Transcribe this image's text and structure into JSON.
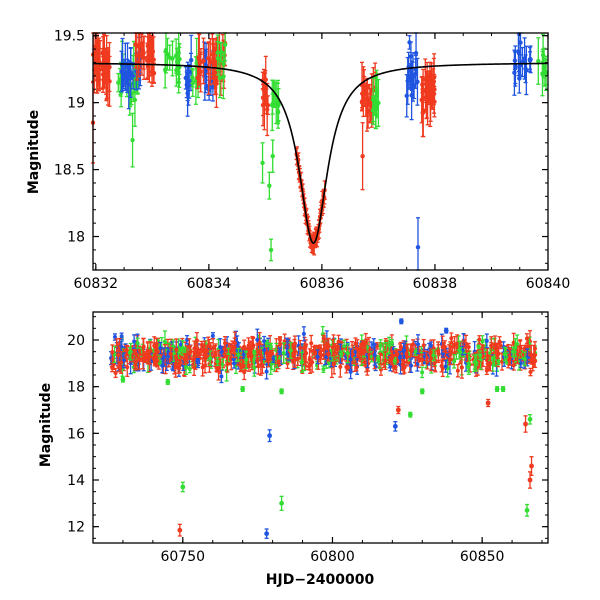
{
  "colors": {
    "green": "#33dd33",
    "blue": "#1f55e0",
    "red": "#f03a1f",
    "model": "#000000"
  },
  "chart_data": [
    {
      "type": "scatter",
      "title": "",
      "xlabel": "",
      "ylabel": "Magnitude",
      "xlim": [
        60831.95,
        60840
      ],
      "ylim": [
        19.52,
        17.75
      ],
      "y_inverted": true,
      "xticks": [
        60832,
        60834,
        60836,
        60838,
        60840
      ],
      "yticks": [
        18,
        18.5,
        19,
        19.5
      ],
      "model_curve": {
        "type": "microlensing",
        "t0": 60835.85,
        "baseline": 19.3,
        "peak": 17.95,
        "tE": 0.55
      },
      "clusters": [
        {
          "color": "red",
          "x_range": [
            60831.95,
            60832.25
          ],
          "y_center": 19.28,
          "n": 40
        },
        {
          "color": "green",
          "x_range": [
            60832.35,
            60832.75
          ],
          "y_center": 19.15,
          "n": 18
        },
        {
          "color": "blue",
          "x_range": [
            60832.45,
            60832.8
          ],
          "y_center": 19.25,
          "n": 20
        },
        {
          "color": "red",
          "x_range": [
            60832.7,
            60833.05
          ],
          "y_center": 19.35,
          "n": 25
        },
        {
          "color": "green",
          "x_range": [
            60833.2,
            60833.5
          ],
          "y_center": 19.3,
          "n": 12
        },
        {
          "color": "blue",
          "x_range": [
            60833.55,
            60833.7
          ],
          "y_center": 19.2,
          "n": 8
        },
        {
          "color": "green",
          "x_range": [
            60833.7,
            60833.85
          ],
          "y_center": 19.2,
          "n": 6
        },
        {
          "color": "blue",
          "x_range": [
            60833.9,
            60834.1
          ],
          "y_center": 19.25,
          "n": 12
        },
        {
          "color": "red",
          "x_range": [
            60833.8,
            60834.3
          ],
          "y_center": 19.3,
          "n": 35
        },
        {
          "color": "green",
          "x_range": [
            60834.1,
            60834.3
          ],
          "y_center": 19.3,
          "n": 8
        },
        {
          "color": "red",
          "x_range": [
            60834.95,
            60835.05
          ],
          "y_center": 19.05,
          "n": 12
        },
        {
          "color": "green",
          "x_range": [
            60835.1,
            60835.25
          ],
          "y_center": 19.0,
          "n": 10
        },
        {
          "color": "red",
          "x_range": [
            60836.7,
            60836.95
          ],
          "y_center": 19.05,
          "n": 22
        },
        {
          "color": "green",
          "x_range": [
            60836.85,
            60837.0
          ],
          "y_center": 19.0,
          "n": 10
        },
        {
          "color": "blue",
          "x_range": [
            60837.5,
            60837.7
          ],
          "y_center": 19.2,
          "n": 16
        },
        {
          "color": "red",
          "x_range": [
            60837.75,
            60838.0
          ],
          "y_center": 19.1,
          "n": 30
        },
        {
          "color": "blue",
          "x_range": [
            60839.4,
            60839.7
          ],
          "y_center": 19.3,
          "n": 16
        },
        {
          "color": "green",
          "x_range": [
            60839.8,
            60840.0
          ],
          "y_center": 19.25,
          "n": 8
        }
      ],
      "peak_points": {
        "color": "red",
        "x_range": [
          60835.55,
          60836.05
        ],
        "n": 60
      },
      "outliers": [
        {
          "color": "green",
          "x": 60835.1,
          "y": 17.9,
          "err": 0.08
        },
        {
          "color": "green",
          "x": 60835.07,
          "y": 18.38,
          "err": 0.1
        },
        {
          "color": "green",
          "x": 60835.13,
          "y": 18.6,
          "err": 0.12
        },
        {
          "color": "green",
          "x": 60834.95,
          "y": 18.55,
          "err": 0.15
        },
        {
          "color": "blue",
          "x": 60837.7,
          "y": 17.92,
          "err": 0.22
        },
        {
          "color": "green",
          "x": 60832.65,
          "y": 18.72,
          "err": 0.2
        },
        {
          "color": "red",
          "x": 60831.95,
          "y": 18.85,
          "err": 0.3
        },
        {
          "color": "red",
          "x": 60836.72,
          "y": 18.6,
          "err": 0.25
        },
        {
          "color": "blue",
          "x": 60837.55,
          "y": 19.45,
          "err": 0.05
        }
      ]
    },
    {
      "type": "scatter",
      "title": "",
      "xlabel": "HJD−2400000",
      "ylabel": "Magnitude",
      "xlim": [
        60720,
        60872
      ],
      "ylim": [
        21.2,
        11.3
      ],
      "y_inverted": true,
      "xticks": [
        60750,
        60800,
        60850
      ],
      "yticks": [
        12,
        14,
        16,
        18,
        20
      ],
      "baseline": {
        "x_range": [
          60726,
          60868
        ],
        "y_center": 19.35,
        "spread": 0.3
      },
      "outliers": [
        {
          "color": "red",
          "x": 60749,
          "y": 11.85,
          "err": 0.25
        },
        {
          "color": "green",
          "x": 60750,
          "y": 13.7,
          "err": 0.2
        },
        {
          "color": "blue",
          "x": 60778,
          "y": 11.7,
          "err": 0.2
        },
        {
          "color": "green",
          "x": 60783,
          "y": 13.0,
          "err": 0.3
        },
        {
          "color": "blue",
          "x": 60779,
          "y": 15.9,
          "err": 0.25
        },
        {
          "color": "blue",
          "x": 60821,
          "y": 16.3,
          "err": 0.2
        },
        {
          "color": "red",
          "x": 60822,
          "y": 17.0,
          "err": 0.15
        },
        {
          "color": "green",
          "x": 60826,
          "y": 16.8,
          "err": 0.1
        },
        {
          "color": "blue",
          "x": 60823,
          "y": 20.8,
          "err": 0.1
        },
        {
          "color": "green",
          "x": 60865,
          "y": 12.7,
          "err": 0.25
        },
        {
          "color": "red",
          "x": 60866,
          "y": 14.0,
          "err": 0.35
        },
        {
          "color": "red",
          "x": 60866.5,
          "y": 14.6,
          "err": 0.4
        },
        {
          "color": "red",
          "x": 60864.5,
          "y": 16.4,
          "err": 0.35
        },
        {
          "color": "green",
          "x": 60866,
          "y": 16.6,
          "err": 0.2
        },
        {
          "color": "green",
          "x": 60730,
          "y": 18.3,
          "err": 0.1
        },
        {
          "color": "green",
          "x": 60745,
          "y": 18.2,
          "err": 0.1
        },
        {
          "color": "green",
          "x": 60770,
          "y": 17.9,
          "err": 0.1
        },
        {
          "color": "green",
          "x": 60783,
          "y": 17.8,
          "err": 0.1
        },
        {
          "color": "green",
          "x": 60830,
          "y": 17.8,
          "err": 0.1
        },
        {
          "color": "green",
          "x": 60855,
          "y": 17.9,
          "err": 0.1
        },
        {
          "color": "green",
          "x": 60857,
          "y": 17.9,
          "err": 0.1
        },
        {
          "color": "blue",
          "x": 60755,
          "y": 19.1,
          "err": 0.1
        },
        {
          "color": "blue",
          "x": 60838,
          "y": 20.4,
          "err": 0.1
        },
        {
          "color": "red",
          "x": 60852,
          "y": 17.3,
          "err": 0.15
        }
      ]
    }
  ]
}
